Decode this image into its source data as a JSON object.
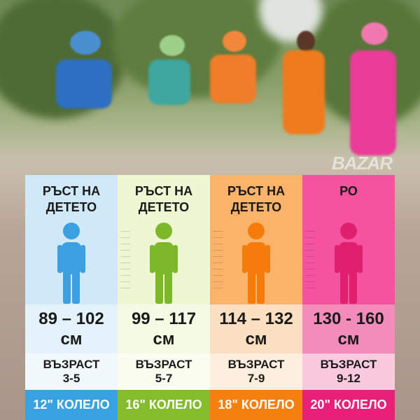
{
  "columns": [
    {
      "heading": "РЪСТ НА ДЕТЕТО",
      "height": "89 – 102 см",
      "age_label": "ВЪЗРАСТ",
      "age": "3-5",
      "bike": "12\" КОЛЕЛО",
      "colors": {
        "head": "#cfe9f8",
        "fig": "#3aa0df",
        "height_bg": "#e4f3fb",
        "age_bg": "#f2f9fd",
        "bike_bg": "#36a2df"
      }
    },
    {
      "heading": "РЪСТ НА ДЕТЕТО",
      "height": "99 – 117 см",
      "age_label": "ВЪЗРАСТ",
      "age": "5-7",
      "bike": "16\" КОЛЕЛО",
      "colors": {
        "head": "#eef6d2",
        "fig": "#7cb82a",
        "height_bg": "#f5fae4",
        "age_bg": "#fbfdf1",
        "bike_bg": "#84bd2c"
      }
    },
    {
      "heading": "РЪСТ НА ДЕТЕТО",
      "height": "114 – 132 см",
      "age_label": "ВЪЗРАСТ",
      "age": "7-9",
      "bike": "18\" КОЛЕЛО",
      "colors": {
        "head": "#fbb36a",
        "fig": "#f57c0a",
        "height_bg": "#fde0c2",
        "age_bg": "#feeede",
        "bike_bg": "#f6800f"
      }
    },
    {
      "heading": "РО",
      "height": "130 - 160 см",
      "age_label": "ВЪЗРАСТ",
      "age": "9-12",
      "bike": "20\" КОЛЕЛО",
      "colors": {
        "head": "#f552a0",
        "fig": "#e0206f",
        "height_bg": "#f48cbb",
        "age_bg": "#fbc9de",
        "bike_bg": "#e8207a"
      }
    }
  ],
  "watermark": "BAZAR"
}
